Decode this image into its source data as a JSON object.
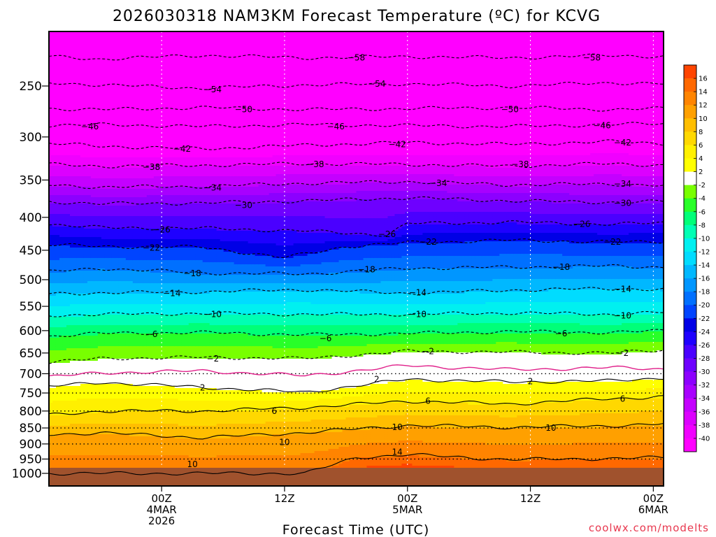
{
  "chart_data": {
    "type": "heatmap",
    "title": "2026030318 NAM3KM Forecast Temperature (ºC) for KCVG",
    "xlabel": "Forecast Time (UTC)",
    "ylabel": "",
    "credit": "coolwx.com/modelts",
    "credit_color": "#e8384f",
    "y_scale": "log",
    "ylim": [
      1000,
      200
    ],
    "xlim_hours": [
      -5.0,
      55.0
    ],
    "y_ticks": [
      {
        "value": 250,
        "label": "250"
      },
      {
        "value": 300,
        "label": "300"
      },
      {
        "value": 350,
        "label": "350"
      },
      {
        "value": 400,
        "label": "400"
      },
      {
        "value": 450,
        "label": "450"
      },
      {
        "value": 500,
        "label": "500"
      },
      {
        "value": 550,
        "label": "550"
      },
      {
        "value": 600,
        "label": "600"
      },
      {
        "value": 650,
        "label": "650"
      },
      {
        "value": 700,
        "label": "700"
      },
      {
        "value": 750,
        "label": "750"
      },
      {
        "value": 800,
        "label": "800"
      },
      {
        "value": 850,
        "label": "850"
      },
      {
        "value": 900,
        "label": "900"
      },
      {
        "value": 950,
        "label": "950"
      },
      {
        "value": 1000,
        "label": "1000"
      }
    ],
    "x_ticks": [
      {
        "hour": 6,
        "lines": [
          "00Z",
          "4MAR",
          "2026"
        ]
      },
      {
        "hour": 18,
        "lines": [
          "12Z"
        ]
      },
      {
        "hour": 30,
        "lines": [
          "00Z",
          "5MAR"
        ]
      },
      {
        "hour": 42,
        "lines": [
          "12Z"
        ]
      },
      {
        "hour": 54,
        "lines": [
          "00Z",
          "6MAR"
        ]
      }
    ],
    "dotted_pressure_levels": [
      700,
      750,
      800,
      850,
      900,
      950
    ],
    "colorbar": {
      "bins": [
        {
          "lo": -42,
          "hi": -40,
          "color": "#ff00ff"
        },
        {
          "lo": -40,
          "hi": -38,
          "color": "#f000ff"
        },
        {
          "lo": -38,
          "hi": -36,
          "color": "#dc00ff"
        },
        {
          "lo": -36,
          "hi": -34,
          "color": "#c400ff"
        },
        {
          "lo": -34,
          "hi": -32,
          "color": "#a800ff"
        },
        {
          "lo": -32,
          "hi": -30,
          "color": "#8c00ff"
        },
        {
          "lo": -30,
          "hi": -28,
          "color": "#6e00ff"
        },
        {
          "lo": -28,
          "hi": -26,
          "color": "#4a00ff"
        },
        {
          "lo": -26,
          "hi": -24,
          "color": "#1e00ff"
        },
        {
          "lo": -24,
          "hi": -22,
          "color": "#0000e6"
        },
        {
          "lo": -22,
          "hi": -20,
          "color": "#0044ff"
        },
        {
          "lo": -20,
          "hi": -18,
          "color": "#0070ff"
        },
        {
          "lo": -18,
          "hi": -16,
          "color": "#0096ff"
        },
        {
          "lo": -16,
          "hi": -14,
          "color": "#00b8ff"
        },
        {
          "lo": -14,
          "hi": -12,
          "color": "#00dcff"
        },
        {
          "lo": -12,
          "hi": -10,
          "color": "#00f0f0"
        },
        {
          "lo": -10,
          "hi": -8,
          "color": "#00ffb4"
        },
        {
          "lo": -8,
          "hi": -6,
          "color": "#00ff78"
        },
        {
          "lo": -6,
          "hi": -4,
          "color": "#28ff28"
        },
        {
          "lo": -4,
          "hi": -2,
          "color": "#78ff00"
        },
        {
          "lo": -2,
          "hi": 2,
          "color": "#ffffff"
        },
        {
          "lo": 2,
          "hi": 4,
          "color": "#ffff00"
        },
        {
          "lo": 4,
          "hi": 6,
          "color": "#fff000"
        },
        {
          "lo": 6,
          "hi": 8,
          "color": "#ffd800"
        },
        {
          "lo": 8,
          "hi": 10,
          "color": "#ffbe00"
        },
        {
          "lo": 10,
          "hi": 12,
          "color": "#ffa000"
        },
        {
          "lo": 12,
          "hi": 14,
          "color": "#ff8400"
        },
        {
          "lo": 14,
          "hi": 16,
          "color": "#ff6800"
        },
        {
          "lo": 16,
          "hi": 18,
          "color": "#ff4400"
        }
      ],
      "labels": [
        "16",
        "14",
        "12",
        "10",
        "8",
        "6",
        "4",
        "2",
        "-2",
        "-4",
        "-6",
        "-8",
        "-10",
        "-12",
        "-14",
        "-16",
        "-18",
        "-20",
        "-22",
        "-24",
        "-26",
        "-28",
        "-30",
        "-32",
        "-34",
        "-36",
        "-38",
        "-40"
      ]
    },
    "series": [
      {
        "name": "-58",
        "values": [
          [
            -5,
            225
          ],
          [
            0,
            227
          ],
          [
            10,
            224
          ],
          [
            20,
            226
          ],
          [
            30,
            225
          ],
          [
            40,
            226
          ],
          [
            50,
            224
          ],
          [
            55,
            225
          ]
        ]
      },
      {
        "name": "-54",
        "values": [
          [
            -5,
            247
          ],
          [
            0,
            249
          ],
          [
            10,
            252
          ],
          [
            20,
            249
          ],
          [
            30,
            248
          ],
          [
            40,
            250
          ],
          [
            50,
            247
          ],
          [
            55,
            248
          ]
        ]
      },
      {
        "name": "-50",
        "values": [
          [
            -5,
            271
          ],
          [
            0,
            272
          ],
          [
            10,
            270
          ],
          [
            20,
            272
          ],
          [
            30,
            271
          ],
          [
            40,
            270
          ],
          [
            50,
            272
          ],
          [
            55,
            271
          ]
        ]
      },
      {
        "name": "-46",
        "values": [
          [
            -5,
            288
          ],
          [
            0,
            287
          ],
          [
            10,
            289
          ],
          [
            20,
            287
          ],
          [
            30,
            288
          ],
          [
            40,
            289
          ],
          [
            50,
            287
          ],
          [
            55,
            286
          ]
        ]
      },
      {
        "name": "-42",
        "values": [
          [
            -5,
            307
          ],
          [
            0,
            310
          ],
          [
            10,
            313
          ],
          [
            20,
            309
          ],
          [
            30,
            306
          ],
          [
            40,
            308
          ],
          [
            50,
            305
          ],
          [
            55,
            307
          ]
        ]
      },
      {
        "name": "-38",
        "values": [
          [
            -5,
            331
          ],
          [
            0,
            333
          ],
          [
            10,
            332
          ],
          [
            20,
            330
          ],
          [
            30,
            331
          ],
          [
            40,
            333
          ],
          [
            50,
            330
          ],
          [
            55,
            332
          ]
        ]
      },
      {
        "name": "-34",
        "values": [
          [
            -5,
            356
          ],
          [
            0,
            359
          ],
          [
            10,
            358
          ],
          [
            20,
            354
          ],
          [
            30,
            352
          ],
          [
            40,
            356
          ],
          [
            50,
            355
          ],
          [
            55,
            357
          ]
        ]
      },
      {
        "name": "-30",
        "values": [
          [
            -5,
            378
          ],
          [
            0,
            381
          ],
          [
            10,
            380
          ],
          [
            20,
            377
          ],
          [
            30,
            373
          ],
          [
            40,
            377
          ],
          [
            50,
            379
          ],
          [
            55,
            378
          ]
        ]
      },
      {
        "name": "-26",
        "values": [
          [
            -5,
            410
          ],
          [
            0,
            415
          ],
          [
            10,
            416
          ],
          [
            20,
            420
          ],
          [
            28,
            426
          ],
          [
            30,
            409
          ],
          [
            40,
            407
          ],
          [
            50,
            410
          ],
          [
            55,
            408
          ]
        ]
      },
      {
        "name": "-22",
        "values": [
          [
            -5,
            441
          ],
          [
            0,
            444
          ],
          [
            10,
            445
          ],
          [
            18,
            462
          ],
          [
            24,
            444
          ],
          [
            30,
            438
          ],
          [
            40,
            434
          ],
          [
            50,
            437
          ],
          [
            55,
            436
          ]
        ]
      },
      {
        "name": "-18",
        "values": [
          [
            -5,
            486
          ],
          [
            0,
            480
          ],
          [
            10,
            488
          ],
          [
            20,
            490
          ],
          [
            30,
            480
          ],
          [
            40,
            478
          ],
          [
            50,
            476
          ],
          [
            55,
            478
          ]
        ]
      },
      {
        "name": "-14",
        "values": [
          [
            -5,
            526
          ],
          [
            0,
            524
          ],
          [
            10,
            522
          ],
          [
            20,
            518
          ],
          [
            30,
            525
          ],
          [
            40,
            519
          ],
          [
            50,
            516
          ],
          [
            55,
            518
          ]
        ]
      },
      {
        "name": "-10",
        "values": [
          [
            -5,
            568
          ],
          [
            0,
            566
          ],
          [
            10,
            564
          ],
          [
            20,
            566
          ],
          [
            30,
            566
          ],
          [
            40,
            563
          ],
          [
            50,
            566
          ],
          [
            55,
            562
          ]
        ]
      },
      {
        "name": "-6",
        "values": [
          [
            -5,
            612
          ],
          [
            0,
            606
          ],
          [
            10,
            604
          ],
          [
            20,
            609
          ],
          [
            30,
            606
          ],
          [
            40,
            602
          ],
          [
            50,
            604
          ],
          [
            55,
            600
          ]
        ]
      },
      {
        "name": "-2",
        "values": [
          [
            -5,
            672
          ],
          [
            0,
            663
          ],
          [
            10,
            660
          ],
          [
            20,
            663
          ],
          [
            30,
            646
          ],
          [
            40,
            648
          ],
          [
            50,
            650
          ],
          [
            55,
            643
          ]
        ]
      },
      {
        "name": "0",
        "values": [
          [
            -5,
            708
          ],
          [
            0,
            698
          ],
          [
            10,
            693
          ],
          [
            20,
            705
          ],
          [
            30,
            680
          ],
          [
            40,
            690
          ],
          [
            50,
            685
          ],
          [
            55,
            688
          ]
        ]
      },
      {
        "name": "2",
        "values": [
          [
            -5,
            733
          ],
          [
            0,
            722
          ],
          [
            10,
            735
          ],
          [
            20,
            748
          ],
          [
            30,
            714
          ],
          [
            40,
            721
          ],
          [
            50,
            718
          ],
          [
            55,
            710
          ]
        ]
      },
      {
        "name": "6",
        "values": [
          [
            -5,
            812
          ],
          [
            0,
            800
          ],
          [
            10,
            800
          ],
          [
            20,
            790
          ],
          [
            30,
            772
          ],
          [
            40,
            780
          ],
          [
            50,
            765
          ],
          [
            55,
            760
          ]
        ]
      },
      {
        "name": "10",
        "values": [
          [
            -5,
            870
          ],
          [
            0,
            865
          ],
          [
            10,
            880
          ],
          [
            20,
            864
          ],
          [
            30,
            842
          ],
          [
            40,
            848
          ],
          [
            50,
            843
          ],
          [
            55,
            838
          ]
        ]
      },
      {
        "name": "14",
        "values": [
          [
            -5,
            1000
          ],
          [
            20,
            1000
          ],
          [
            25,
            945
          ],
          [
            30,
            935
          ],
          [
            40,
            952
          ],
          [
            50,
            948
          ],
          [
            55,
            945
          ]
        ]
      }
    ],
    "contour_labels": [
      {
        "value": "-58",
        "hour": 25,
        "p": 226
      },
      {
        "value": "-58",
        "hour": 48,
        "p": 226
      },
      {
        "value": "-54",
        "hour": 11,
        "p": 253
      },
      {
        "value": "-54",
        "hour": 27,
        "p": 248
      },
      {
        "value": "-50",
        "hour": 14,
        "p": 272
      },
      {
        "value": "-50",
        "hour": 40,
        "p": 272
      },
      {
        "value": "-46",
        "hour": -1,
        "p": 289
      },
      {
        "value": "-46",
        "hour": 23,
        "p": 289
      },
      {
        "value": "-46",
        "hour": 49,
        "p": 288
      },
      {
        "value": "-42",
        "hour": 8,
        "p": 313
      },
      {
        "value": "-42",
        "hour": 29,
        "p": 308
      },
      {
        "value": "-42",
        "hour": 51,
        "p": 306
      },
      {
        "value": "-38",
        "hour": 5,
        "p": 334
      },
      {
        "value": "-38",
        "hour": 21,
        "p": 331
      },
      {
        "value": "-38",
        "hour": 41,
        "p": 331
      },
      {
        "value": "-34",
        "hour": 11,
        "p": 360
      },
      {
        "value": "-34",
        "hour": 33,
        "p": 354
      },
      {
        "value": "-34",
        "hour": 51,
        "p": 355
      },
      {
        "value": "-30",
        "hour": 14,
        "p": 383
      },
      {
        "value": "-30",
        "hour": 51,
        "p": 380
      },
      {
        "value": "-26",
        "hour": 6,
        "p": 418
      },
      {
        "value": "-26",
        "hour": 28,
        "p": 425
      },
      {
        "value": "-26",
        "hour": 47,
        "p": 410
      },
      {
        "value": "-22",
        "hour": 5,
        "p": 446
      },
      {
        "value": "-22",
        "hour": 32,
        "p": 437
      },
      {
        "value": "-22",
        "hour": 50,
        "p": 437
      },
      {
        "value": "-18",
        "hour": 9,
        "p": 489
      },
      {
        "value": "-18",
        "hour": 26,
        "p": 482
      },
      {
        "value": "-18",
        "hour": 45,
        "p": 478
      },
      {
        "value": "-14",
        "hour": 7,
        "p": 525
      },
      {
        "value": "-14",
        "hour": 31,
        "p": 524
      },
      {
        "value": "-14",
        "hour": 51,
        "p": 517
      },
      {
        "value": "-10",
        "hour": 11,
        "p": 566
      },
      {
        "value": "-10",
        "hour": 31,
        "p": 566
      },
      {
        "value": "-10",
        "hour": 51,
        "p": 569
      },
      {
        "value": "-6",
        "hour": 5,
        "p": 608
      },
      {
        "value": "-6",
        "hour": 22,
        "p": 617
      },
      {
        "value": "-6",
        "hour": 45,
        "p": 606
      },
      {
        "value": "-2",
        "hour": 11,
        "p": 663
      },
      {
        "value": "-2",
        "hour": 32,
        "p": 646
      },
      {
        "value": "-2",
        "hour": 51,
        "p": 650
      },
      {
        "value": "2",
        "hour": 10,
        "p": 736
      },
      {
        "value": "2",
        "hour": 27,
        "p": 714
      },
      {
        "value": "2",
        "hour": 42,
        "p": 720
      },
      {
        "value": "6",
        "hour": 17,
        "p": 800
      },
      {
        "value": "6",
        "hour": 32,
        "p": 772
      },
      {
        "value": "6",
        "hour": 51,
        "p": 766
      },
      {
        "value": "10",
        "hour": 18,
        "p": 895
      },
      {
        "value": "10",
        "hour": 29,
        "p": 848
      },
      {
        "value": "10",
        "hour": 44,
        "p": 850
      },
      {
        "value": "10",
        "hour": 9,
        "p": 968
      },
      {
        "value": "14",
        "hour": 29,
        "p": 927
      }
    ]
  }
}
